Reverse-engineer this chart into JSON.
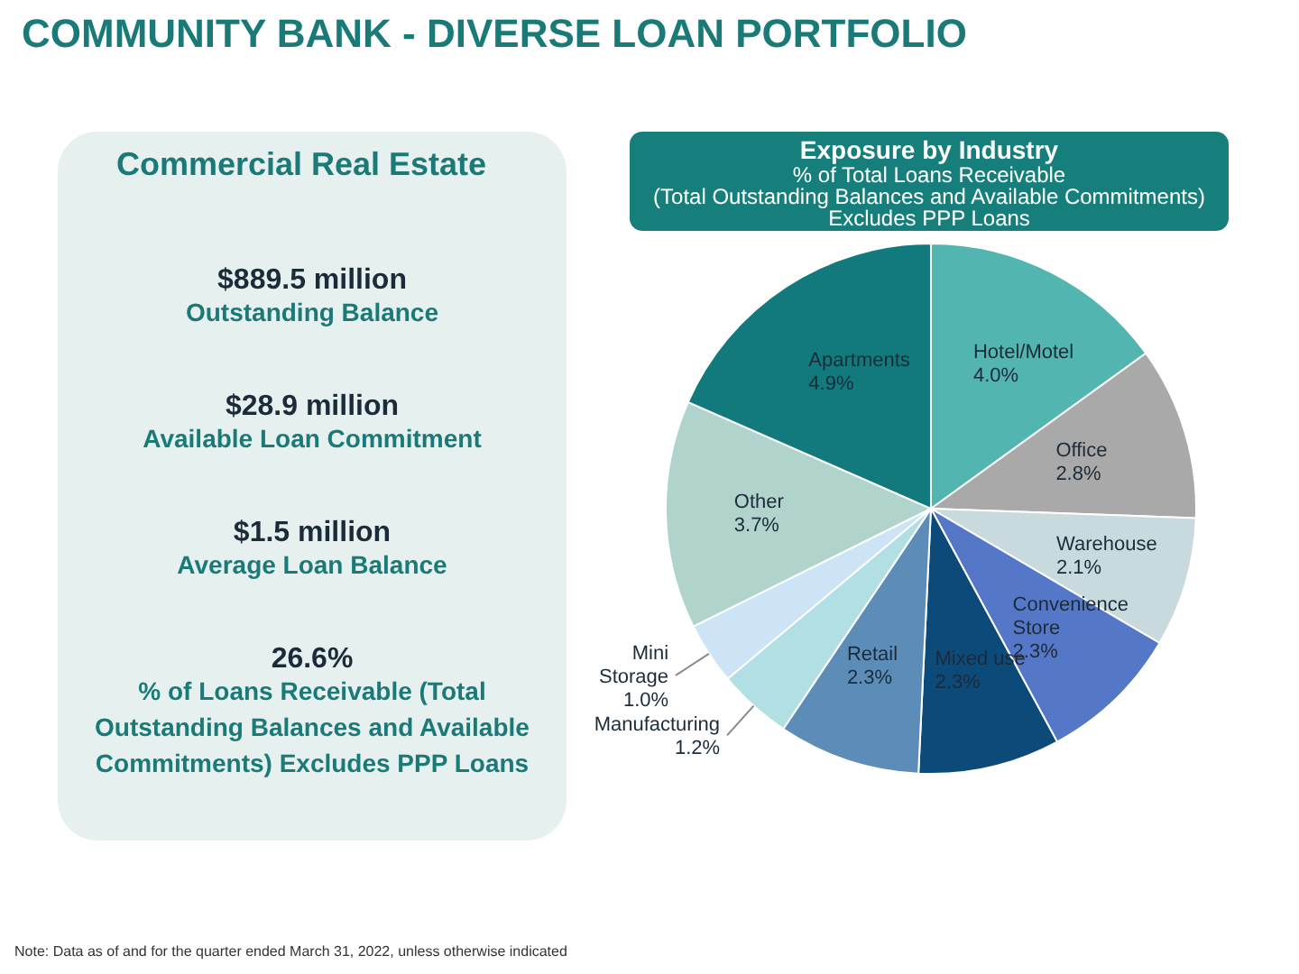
{
  "chart_data": [
    {
      "type": "other",
      "title": "COMMUNITY BANK - DIVERSE LOAN PORTFOLIO",
      "subtitle": "Commercial Real Estate",
      "annotations": [
        "$889.5 million",
        "Outstanding Balance",
        "$28.9 million",
        "Available Loan Commitment",
        "$1.5 million",
        "Average Loan Balance",
        "26.6%",
        "% of Loans Receivable (Total\nOutstanding Balances and Available\nCommitments) Excludes PPP Loans"
      ]
    },
    {
      "type": "pie",
      "title": "Exposure by Industry",
      "subtitle": "% of Total Loans Receivable\n(Total Outstanding Balances and Available Commitments)\nExcludes PPP Loans",
      "categories": [
        "Hotel/Motel",
        "Office",
        "Warehouse",
        "Convenience\nStore",
        "Mixed use",
        "Retail",
        "Manufacturing",
        "Mini\nStorage",
        "Other",
        "Apartments"
      ],
      "values": [
        4.0,
        2.8,
        2.1,
        2.3,
        2.3,
        2.3,
        1.2,
        1.0,
        3.7,
        4.9
      ],
      "value_labels": [
        "4.0%",
        "2.8%",
        "2.1%",
        "2.3%",
        "2.3%",
        "2.3%",
        "1.2%",
        "1.0%",
        "3.7%",
        "4.9%"
      ],
      "colors": [
        "#52b5b0",
        "#a9a9a9",
        "#c9dadf",
        "#5577c8",
        "#0c4a7a",
        "#5b8db8",
        "#b2dfe3",
        "#cce4f5",
        "#b0d4cc",
        "#127a7c"
      ],
      "annotations": [
        "Note:  Data as of and for the quarter ended March 31, 2022, unless otherwise indicated"
      ]
    }
  ]
}
